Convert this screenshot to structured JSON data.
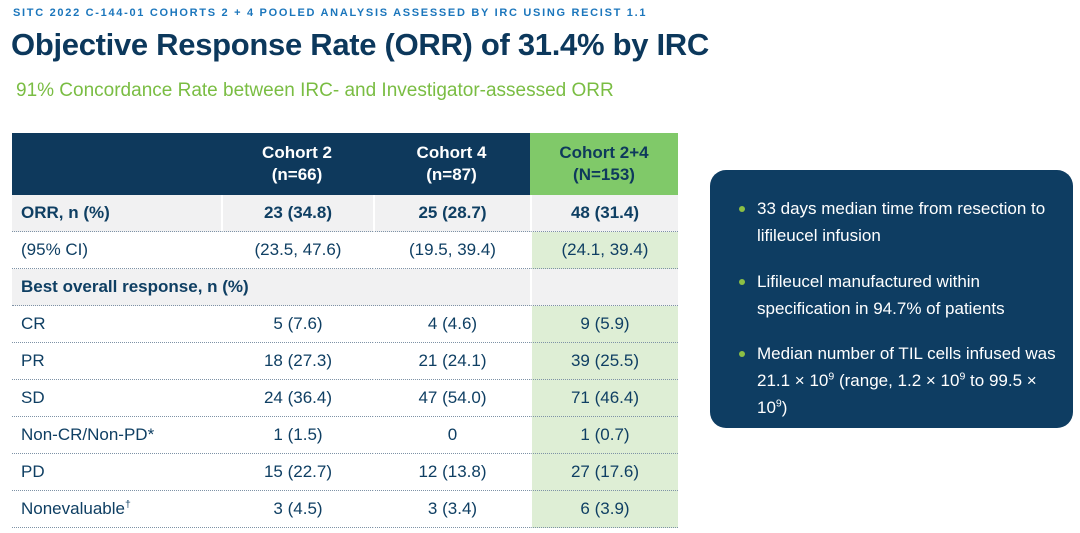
{
  "header": {
    "eyebrow": "SITC 2022 C-144-01 COHORTS 2 + 4 POOLED ANALYSIS ASSESSED BY IRC USING RECIST 1.1",
    "title": "Objective Response Rate (ORR) of 31.4% by IRC",
    "subtitle": "91% Concordance Rate between IRC- and Investigator-assessed ORR"
  },
  "table": {
    "columns": [
      {
        "label": "",
        "sub": "",
        "highlight": false
      },
      {
        "label": "Cohort 2",
        "sub": "(n=66)",
        "highlight": false
      },
      {
        "label": "Cohort 4",
        "sub": "(n=87)",
        "highlight": false
      },
      {
        "label": "Cohort 2+4",
        "sub": "(N=153)",
        "highlight": true
      }
    ],
    "rows": [
      {
        "type": "data",
        "bold": true,
        "shade": "gray",
        "label": [
          {
            "text": "ORR, n (%)"
          }
        ],
        "values": [
          "23 (34.8)",
          "25 (28.7)",
          "48 (31.4)"
        ]
      },
      {
        "type": "data",
        "bold": false,
        "shade": "white",
        "label": [
          {
            "text": "(95% CI)"
          }
        ],
        "values": [
          "(23.5, 47.6)",
          "(19.5, 39.4)",
          "(24.1, 39.4)"
        ]
      },
      {
        "type": "section",
        "bold": true,
        "shade": "gray",
        "label": [
          {
            "text": "Best overall response, n (%)"
          }
        ],
        "values": []
      },
      {
        "type": "data",
        "bold": false,
        "shade": "white",
        "label": [
          {
            "text": "CR"
          }
        ],
        "values": [
          "5 (7.6)",
          "4 (4.6)",
          "9 (5.9)"
        ]
      },
      {
        "type": "data",
        "bold": false,
        "shade": "white",
        "label": [
          {
            "text": "PR"
          }
        ],
        "values": [
          "18 (27.3)",
          "21 (24.1)",
          "39 (25.5)"
        ]
      },
      {
        "type": "data",
        "bold": false,
        "shade": "white",
        "label": [
          {
            "text": "SD"
          }
        ],
        "values": [
          "24 (36.4)",
          "47 (54.0)",
          "71 (46.4)"
        ]
      },
      {
        "type": "data",
        "bold": false,
        "shade": "white",
        "label": [
          {
            "text": "Non-CR/Non-PD*"
          }
        ],
        "values": [
          "1 (1.5)",
          "0",
          "1 (0.7)"
        ]
      },
      {
        "type": "data",
        "bold": false,
        "shade": "white",
        "label": [
          {
            "text": "PD"
          }
        ],
        "values": [
          "15 (22.7)",
          "12 (13.8)",
          "27 (17.6)"
        ]
      },
      {
        "type": "data",
        "bold": false,
        "shade": "white",
        "label": [
          {
            "text": "Nonevaluable"
          },
          {
            "sup": "†"
          }
        ],
        "values": [
          "3 (4.5)",
          "3 (3.4)",
          "6 (3.9)"
        ]
      }
    ]
  },
  "side_panel": {
    "bullets": [
      {
        "segments": [
          {
            "text": "33 days median time from resection to lifileucel infusion"
          }
        ]
      },
      {
        "segments": [
          {
            "text": "Lifileucel manufactured within specification in 94.7% of patients"
          }
        ]
      },
      {
        "segments": [
          {
            "text": "Median number of TIL cells infused was 21.1 × 10"
          },
          {
            "sup": "9"
          },
          {
            "text": " (range, 1.2 × 10"
          },
          {
            "sup": "9"
          },
          {
            "text": " to 99.5 × 10"
          },
          {
            "sup": "9"
          },
          {
            "text": ")"
          }
        ]
      }
    ]
  },
  "colors": {
    "navy_table_header": "#0E395C",
    "navy_panel": "#0E3D62",
    "navy_text": "#0F3F63",
    "title_navy": "#0C385C",
    "eyebrow_blue": "#1B76BC",
    "subtitle_green": "#7ABD43",
    "green_header_cell": "#80C969",
    "green_column_tint": "#DEEED5",
    "gray_row": "#F1F1F2",
    "bullet_green": "#8CBF44"
  }
}
